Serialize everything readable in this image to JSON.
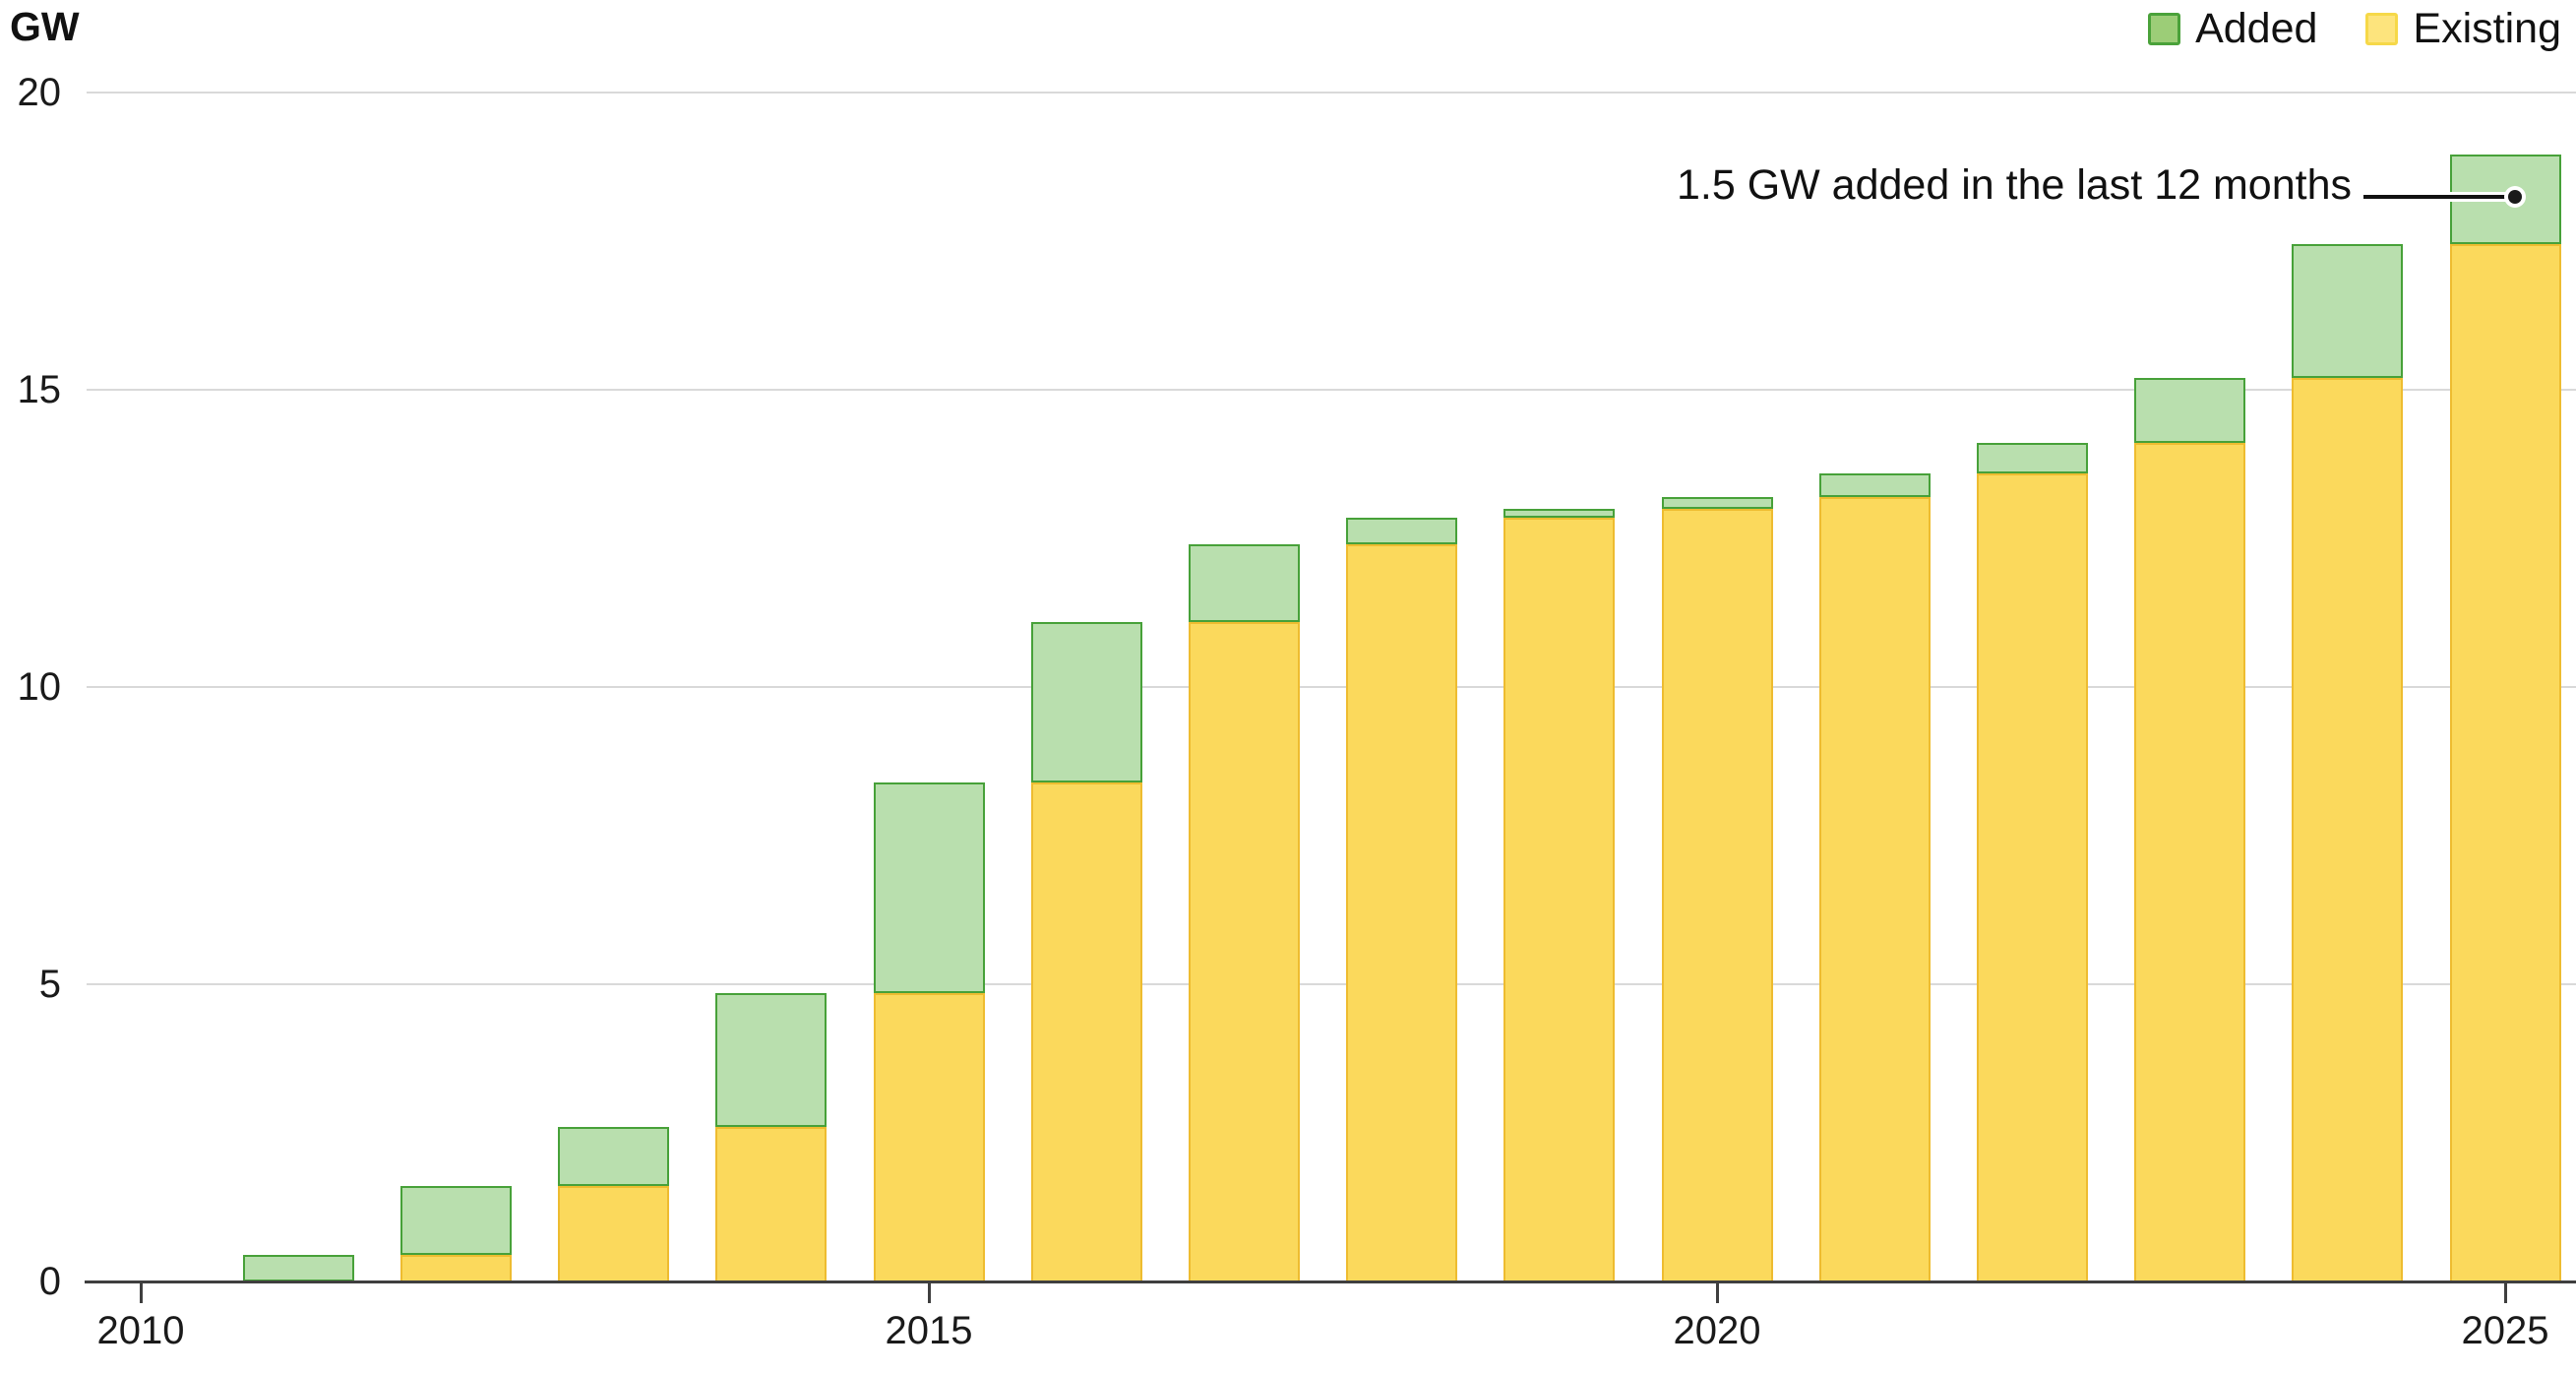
{
  "axis": {
    "unit_label": "GW"
  },
  "legend": {
    "items": [
      {
        "label": "Added",
        "fill": "#9ccd77",
        "border": "#4aa23a"
      },
      {
        "label": "Existing",
        "fill": "#fde47d",
        "border": "#f6d848"
      }
    ]
  },
  "annotation": {
    "text": "1.5 GW added in the last 12 months"
  },
  "colors": {
    "bar_existing_fill": "#fbd95c",
    "bar_existing_border": "#eebc30",
    "bar_added_fill": "#b9dfae",
    "bar_added_border": "#47a139",
    "gridline": "#d9d9d9",
    "axis_line": "#3f3f3f",
    "text": "#1a1a1a"
  },
  "chart_data": {
    "type": "bar",
    "stacked": true,
    "title": "",
    "ylabel": "GW",
    "xlabel": "",
    "ylim": [
      0,
      20
    ],
    "yticks": [
      0,
      5,
      10,
      15,
      20
    ],
    "xticks": [
      2010,
      2015,
      2020,
      2025
    ],
    "grid": "horizontal",
    "legend_position": "top-right",
    "categories": [
      "2010",
      "2011",
      "2012",
      "2013",
      "2014",
      "2015",
      "2016",
      "2017",
      "2018",
      "2019",
      "2020",
      "2021",
      "2022",
      "2023",
      "2024",
      "2025"
    ],
    "series": [
      {
        "name": "Existing",
        "values": [
          0,
          0,
          0.45,
          1.6,
          2.6,
          4.85,
          8.4,
          11.1,
          12.4,
          12.85,
          13.0,
          13.2,
          13.6,
          14.1,
          15.2,
          17.45
        ]
      },
      {
        "name": "Added",
        "values": [
          0,
          0.45,
          1.15,
          1.0,
          2.25,
          3.55,
          2.7,
          1.3,
          0.45,
          0.15,
          0.2,
          0.4,
          0.5,
          1.1,
          2.25,
          1.5
        ]
      }
    ],
    "totals": [
      0,
      0.45,
      1.6,
      2.6,
      4.85,
      8.4,
      11.1,
      12.4,
      12.85,
      13.0,
      13.2,
      13.6,
      14.1,
      15.2,
      17.45,
      18.95
    ],
    "annotation": "1.5 GW added in the last 12 months"
  }
}
